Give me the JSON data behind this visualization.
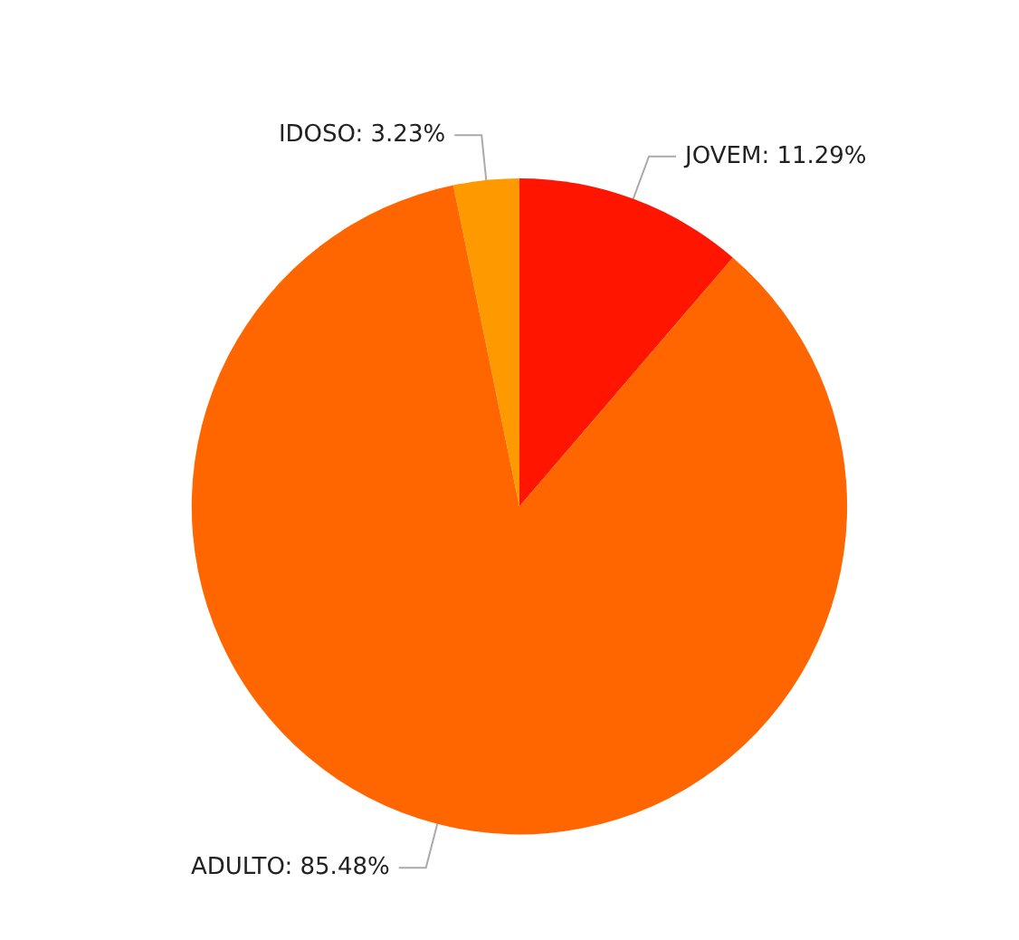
{
  "chart_data": {
    "type": "pie",
    "categories": [
      "JOVEM",
      "ADULTO",
      "IDOSO"
    ],
    "values": [
      11.29,
      85.48,
      3.23
    ],
    "value_labels": [
      "11.29%",
      "85.48%",
      "3.23%"
    ],
    "colors": [
      "#ff1500",
      "#ff6600",
      "#ff9900"
    ],
    "legend": false
  }
}
